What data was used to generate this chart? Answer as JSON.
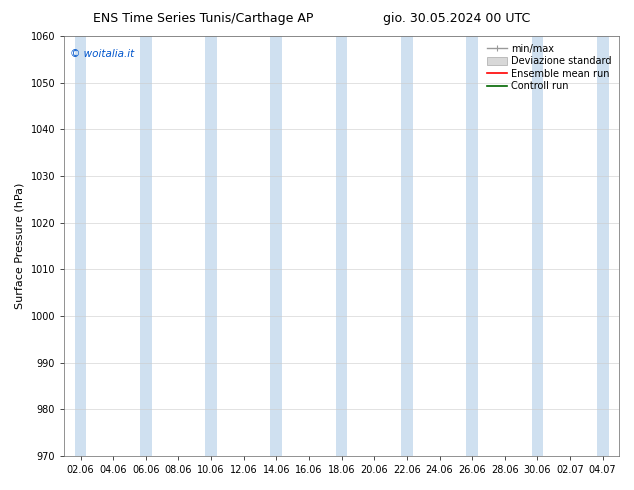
{
  "title_left": "ENS Time Series Tunis/Carthage AP",
  "title_right": "gio. 30.05.2024 00 UTC",
  "ylabel": "Surface Pressure (hPa)",
  "ylim": [
    970,
    1060
  ],
  "yticks": [
    970,
    980,
    990,
    1000,
    1010,
    1020,
    1030,
    1040,
    1050,
    1060
  ],
  "xtick_labels": [
    "02.06",
    "04.06",
    "06.06",
    "08.06",
    "10.06",
    "12.06",
    "14.06",
    "16.06",
    "18.06",
    "20.06",
    "22.06",
    "24.06",
    "26.06",
    "28.06",
    "30.06",
    "02.07",
    "04.07"
  ],
  "band_color": "#cfe0f0",
  "watermark": "© woitalia.it",
  "watermark_color": "#0055cc",
  "legend_entries": [
    "min/max",
    "Deviazione standard",
    "Ensemble mean run",
    "Controll run"
  ],
  "background_color": "#ffffff",
  "title_fontsize": 9,
  "tick_fontsize": 7,
  "ylabel_fontsize": 8,
  "legend_fontsize": 7
}
